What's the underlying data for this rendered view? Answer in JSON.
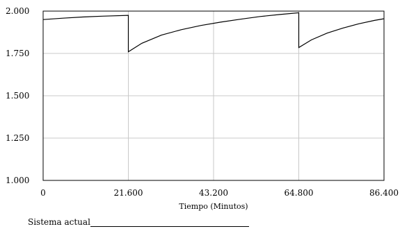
{
  "chart_data": {
    "type": "line",
    "title": "",
    "xlabel": "Tiempo (Minutos)",
    "ylabel": "",
    "xlim": [
      0,
      86400
    ],
    "ylim": [
      1000,
      2000
    ],
    "x_ticks": [
      0,
      21600,
      43200,
      64800,
      86400
    ],
    "x_tick_labels": [
      "0",
      "21.600",
      "43.200",
      "64.800",
      "86.400"
    ],
    "y_ticks": [
      1000,
      1250,
      1500,
      1750,
      2000
    ],
    "y_tick_labels": [
      "1.000",
      "1.250",
      "1.500",
      "1.750",
      "2.000"
    ],
    "grid": true,
    "series": [
      {
        "name": "Sistema actual",
        "x": [
          0,
          0,
          5000,
          10000,
          15000,
          21600,
          21600,
          25000,
          30000,
          35000,
          40000,
          45000,
          50000,
          55000,
          60000,
          64800,
          64800,
          68000,
          72000,
          76000,
          80000,
          84000,
          86400
        ],
        "y": [
          1950,
          1950,
          1958,
          1965,
          1970,
          1975,
          1760,
          1810,
          1858,
          1890,
          1915,
          1935,
          1952,
          1968,
          1980,
          1990,
          1785,
          1830,
          1870,
          1900,
          1925,
          1945,
          1955
        ]
      }
    ]
  },
  "legend": {
    "label": "Sistema actual"
  }
}
